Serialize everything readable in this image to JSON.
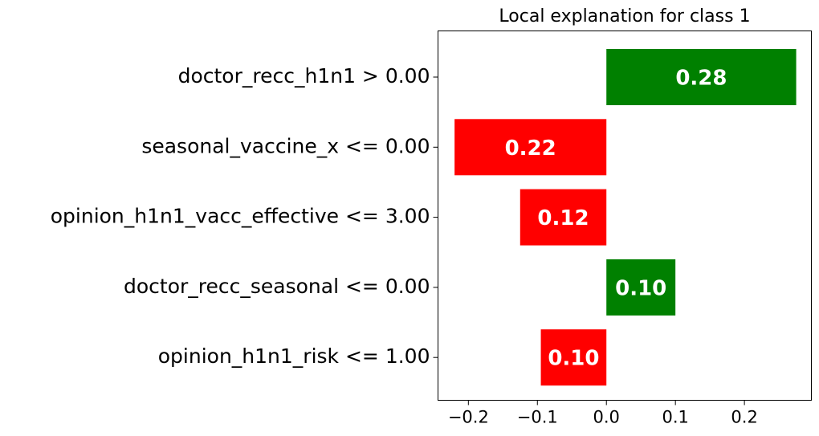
{
  "chart_data": {
    "type": "barh",
    "title": "Local explanation for class 1",
    "categories": [
      "doctor_recc_h1n1 > 0.00",
      "seasonal_vaccine_x <= 0.00",
      "opinion_h1n1_vacc_effective <= 3.00",
      "doctor_recc_seasonal <= 0.00",
      "opinion_h1n1_risk <= 1.00"
    ],
    "values": [
      0.275,
      -0.22,
      -0.125,
      0.1,
      -0.095
    ],
    "value_labels": [
      "0.28",
      "0.22",
      "0.12",
      "0.10",
      "0.10"
    ],
    "positive_color": "#008000",
    "negative_color": "#ff0000",
    "xlim": [
      -0.244,
      0.297
    ],
    "xticks": [
      {
        "value": -0.2,
        "label": "−0.2"
      },
      {
        "value": -0.1,
        "label": "−0.1"
      },
      {
        "value": 0,
        "label": "0.0"
      },
      0.1,
      0.2
    ]
  }
}
